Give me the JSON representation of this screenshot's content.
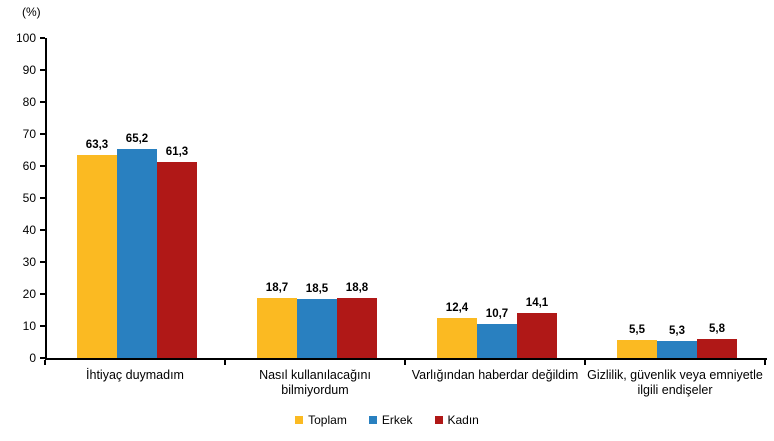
{
  "chart_data": {
    "type": "bar",
    "title": "",
    "ylabel": "(%)",
    "xlabel": "",
    "ylim": [
      0,
      100
    ],
    "yticks": [
      0,
      10,
      20,
      30,
      40,
      50,
      60,
      70,
      80,
      90,
      100
    ],
    "grid": false,
    "legend_position": "bottom",
    "decimal_separator": ",",
    "categories": [
      "İhtiyaç duymadım",
      "Nasıl kullanılacağını bilmiyordum",
      "Varlığından haberdar değildim",
      "Gizlilik, güvenlik veya emniyetle ilgili endişeler"
    ],
    "series": [
      {
        "name": "Toplam",
        "color": "#FBBA22",
        "values": [
          63.3,
          18.7,
          12.4,
          5.5
        ]
      },
      {
        "name": "Erkek",
        "color": "#2980C0",
        "values": [
          65.2,
          18.5,
          10.7,
          5.3
        ]
      },
      {
        "name": "Kadın",
        "color": "#B01817",
        "values": [
          61.3,
          18.8,
          14.1,
          5.8
        ]
      }
    ]
  }
}
